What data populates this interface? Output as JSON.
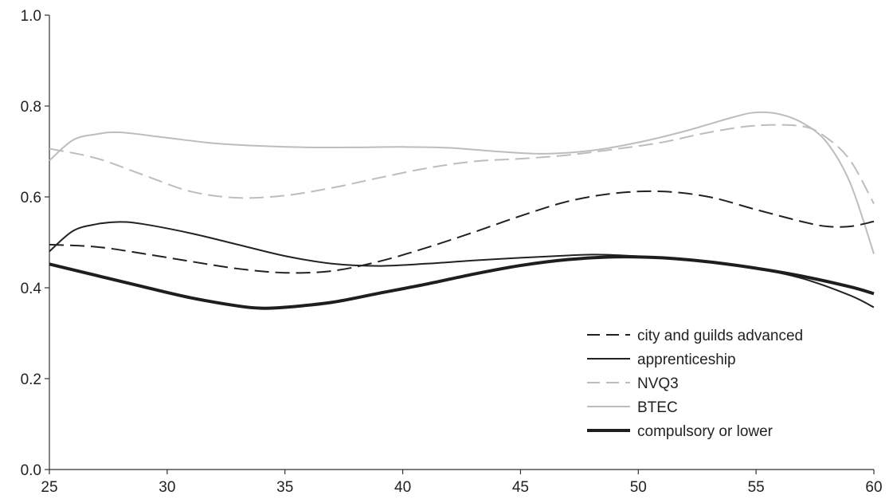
{
  "chart_data": {
    "type": "line",
    "xlim": [
      25,
      60
    ],
    "ylim": [
      0,
      1
    ],
    "x_ticks": [
      "25",
      "30",
      "35",
      "40",
      "45",
      "50",
      "55",
      "60"
    ],
    "y_ticks": [
      "0.0",
      "0.2",
      "0.4",
      "0.6",
      "0.8",
      "1.0"
    ],
    "grid": false,
    "legend_position": "bottom-right",
    "series": [
      {
        "name": "city and guilds advanced",
        "color": "#222222",
        "style": "dashed",
        "width": "normal",
        "x": [
          25,
          27,
          29,
          31,
          33,
          35,
          37,
          39,
          41,
          43,
          45,
          47,
          49,
          51,
          53,
          55,
          57,
          58,
          59,
          60
        ],
        "y": [
          0.495,
          0.49,
          0.475,
          0.458,
          0.442,
          0.433,
          0.437,
          0.458,
          0.488,
          0.522,
          0.558,
          0.59,
          0.608,
          0.612,
          0.6,
          0.572,
          0.545,
          0.535,
          0.535,
          0.546
        ]
      },
      {
        "name": "apprenticeship",
        "color": "#222222",
        "style": "solid",
        "width": "normal",
        "x": [
          25,
          26,
          27,
          28,
          29,
          31,
          33,
          35,
          37,
          39,
          41,
          43,
          45,
          47,
          48,
          49,
          51,
          53,
          55,
          57,
          59,
          60
        ],
        "y": [
          0.48,
          0.525,
          0.54,
          0.545,
          0.54,
          0.52,
          0.495,
          0.47,
          0.453,
          0.448,
          0.453,
          0.46,
          0.466,
          0.471,
          0.473,
          0.472,
          0.466,
          0.458,
          0.443,
          0.42,
          0.383,
          0.357
        ]
      },
      {
        "name": "NVQ3",
        "color": "#bdbdbd",
        "style": "dashed",
        "width": "normal",
        "x": [
          25,
          27,
          29,
          31,
          33,
          35,
          37,
          39,
          41,
          43,
          45,
          47,
          49,
          51,
          53,
          55,
          57,
          58,
          59,
          60
        ],
        "y": [
          0.706,
          0.685,
          0.648,
          0.612,
          0.598,
          0.603,
          0.62,
          0.642,
          0.663,
          0.678,
          0.684,
          0.692,
          0.705,
          0.72,
          0.742,
          0.757,
          0.755,
          0.73,
          0.68,
          0.585
        ]
      },
      {
        "name": "BTEC",
        "color": "#bdbdbd",
        "style": "solid",
        "width": "normal",
        "x": [
          25,
          26,
          27,
          28,
          30,
          32,
          34,
          36,
          38,
          40,
          42,
          44,
          46,
          48,
          50,
          52,
          54,
          55,
          56,
          57,
          58,
          59,
          60
        ],
        "y": [
          0.68,
          0.725,
          0.738,
          0.742,
          0.73,
          0.718,
          0.712,
          0.709,
          0.709,
          0.71,
          0.708,
          0.7,
          0.695,
          0.702,
          0.72,
          0.745,
          0.775,
          0.786,
          0.782,
          0.762,
          0.72,
          0.63,
          0.475
        ]
      },
      {
        "name": "compulsory or lower",
        "color": "#1e1e1e",
        "style": "solid",
        "width": "thick",
        "x": [
          25,
          27,
          29,
          31,
          33,
          34,
          35,
          37,
          39,
          41,
          43,
          45,
          47,
          49,
          51,
          53,
          55,
          57,
          59,
          60
        ],
        "y": [
          0.452,
          0.427,
          0.402,
          0.378,
          0.36,
          0.355,
          0.357,
          0.368,
          0.388,
          0.408,
          0.43,
          0.449,
          0.462,
          0.468,
          0.466,
          0.457,
          0.443,
          0.425,
          0.402,
          0.387
        ]
      }
    ]
  }
}
